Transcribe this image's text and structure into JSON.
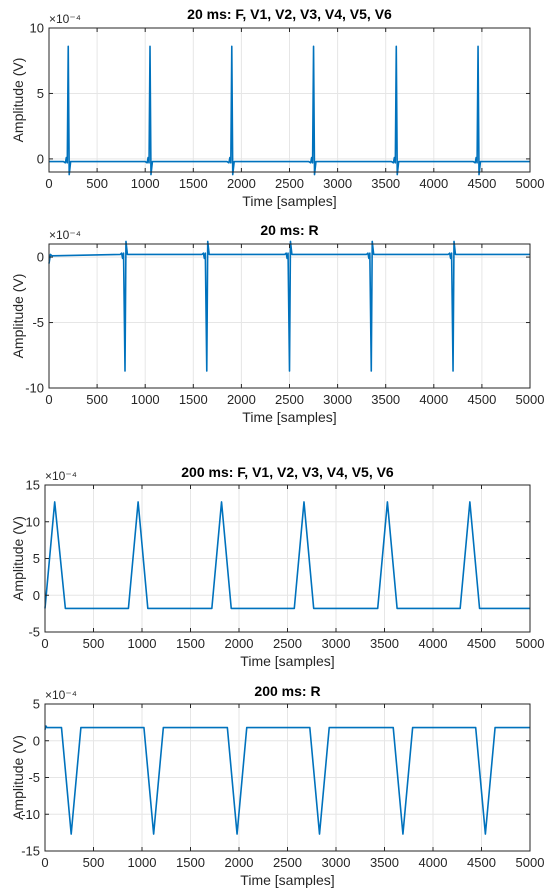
{
  "figure": {
    "series_color": "#0072BD"
  },
  "chart_data": [
    {
      "type": "line",
      "title": "20 ms: F, V1, V2, V3, V4, V5, V6",
      "xlabel": "Time [samples]",
      "ylabel": "Amplitude (V)",
      "exponent": "×10⁻⁴",
      "xlim": [
        0,
        5000
      ],
      "ylim": [
        -1,
        10
      ],
      "xticks": [
        "0",
        "500",
        "1000",
        "1500",
        "2000",
        "2500",
        "3000",
        "3500",
        "4000",
        "4500",
        "5000"
      ],
      "yticks": [
        "0",
        "5",
        "10"
      ],
      "ytick_values": [
        0,
        5,
        10
      ],
      "grid": true,
      "series": [
        {
          "values": [
            [
              0,
              -0.2
            ],
            [
              150,
              -0.2
            ],
            [
              170,
              -0.3
            ],
            [
              180,
              0.1
            ],
            [
              190,
              -0.3
            ],
            [
              200,
              8.6
            ],
            [
              210,
              -1.2
            ],
            [
              225,
              -0.2
            ],
            [
              1000,
              -0.2
            ],
            [
              1020,
              -0.3
            ],
            [
              1030,
              0.1
            ],
            [
              1040,
              -0.3
            ],
            [
              1050,
              8.6
            ],
            [
              1060,
              -1.2
            ],
            [
              1075,
              -0.2
            ],
            [
              1850,
              -0.2
            ],
            [
              1870,
              -0.3
            ],
            [
              1880,
              0.1
            ],
            [
              1890,
              -0.3
            ],
            [
              1900,
              8.6
            ],
            [
              1910,
              -1.2
            ],
            [
              1925,
              -0.2
            ],
            [
              2700,
              -0.2
            ],
            [
              2720,
              -0.3
            ],
            [
              2730,
              0.1
            ],
            [
              2740,
              -0.3
            ],
            [
              2750,
              8.6
            ],
            [
              2760,
              -1.2
            ],
            [
              2775,
              -0.2
            ],
            [
              3560,
              -0.2
            ],
            [
              3580,
              -0.3
            ],
            [
              3590,
              0.1
            ],
            [
              3600,
              -0.3
            ],
            [
              3610,
              8.6
            ],
            [
              3620,
              -1.2
            ],
            [
              3635,
              -0.2
            ],
            [
              4410,
              -0.2
            ],
            [
              4430,
              -0.3
            ],
            [
              4440,
              0.1
            ],
            [
              4450,
              -0.3
            ],
            [
              4460,
              8.6
            ],
            [
              4470,
              -1.2
            ],
            [
              4485,
              -0.2
            ],
            [
              5000,
              -0.2
            ]
          ]
        }
      ]
    },
    {
      "type": "line",
      "title": "20 ms: R",
      "xlabel": "Time [samples]",
      "ylabel": "Amplitude (V)",
      "exponent": "×10⁻⁴",
      "xlim": [
        0,
        5000
      ],
      "ylim": [
        -10,
        1
      ],
      "xticks": [
        "0",
        "500",
        "1000",
        "1500",
        "2000",
        "2500",
        "3000",
        "3500",
        "4000",
        "4500",
        "5000"
      ],
      "yticks": [
        "-10",
        "-5",
        "0"
      ],
      "ytick_values": [
        -10,
        -5,
        0
      ],
      "grid": true,
      "series": [
        {
          "values": [
            [
              0,
              -0.5
            ],
            [
              15,
              0.2
            ],
            [
              30,
              0.1
            ],
            [
              740,
              0.2
            ],
            [
              755,
              0.3
            ],
            [
              765,
              -0.1
            ],
            [
              775,
              0.3
            ],
            [
              790,
              -8.7
            ],
            [
              800,
              1.2
            ],
            [
              815,
              0.2
            ],
            [
              1590,
              0.2
            ],
            [
              1605,
              0.3
            ],
            [
              1615,
              -0.1
            ],
            [
              1625,
              0.3
            ],
            [
              1640,
              -8.7
            ],
            [
              1650,
              1.2
            ],
            [
              1665,
              0.2
            ],
            [
              2450,
              0.2
            ],
            [
              2465,
              0.3
            ],
            [
              2475,
              -0.1
            ],
            [
              2485,
              0.3
            ],
            [
              2500,
              -8.7
            ],
            [
              2510,
              1.2
            ],
            [
              2525,
              0.2
            ],
            [
              3300,
              0.2
            ],
            [
              3315,
              0.3
            ],
            [
              3325,
              -0.1
            ],
            [
              3335,
              0.3
            ],
            [
              3350,
              -8.7
            ],
            [
              3360,
              1.2
            ],
            [
              3375,
              0.2
            ],
            [
              4150,
              0.2
            ],
            [
              4165,
              0.3
            ],
            [
              4175,
              -0.1
            ],
            [
              4185,
              0.3
            ],
            [
              4200,
              -8.7
            ],
            [
              4210,
              1.2
            ],
            [
              4225,
              0.2
            ],
            [
              5000,
              0.2
            ]
          ]
        }
      ]
    },
    {
      "type": "line",
      "title": "200 ms: F, V1, V2, V3, V4, V5, V6",
      "xlabel": "Time [samples]",
      "ylabel": "Amplitude (V)",
      "exponent": "×10⁻⁴",
      "xlim": [
        0,
        5000
      ],
      "ylim": [
        -5,
        15
      ],
      "xticks": [
        "0",
        "500",
        "1000",
        "1500",
        "2000",
        "2500",
        "3000",
        "3500",
        "4000",
        "4500",
        "5000"
      ],
      "yticks": [
        "-5",
        "0",
        "5",
        "10",
        "15"
      ],
      "ytick_values": [
        -5,
        0,
        5,
        10,
        15
      ],
      "grid": true,
      "series": [
        {
          "values": [
            [
              0,
              -1.8
            ],
            [
              100,
              12.7
            ],
            [
              210,
              -1.8
            ],
            [
              860,
              -1.8
            ],
            [
              960,
              12.7
            ],
            [
              1060,
              -1.8
            ],
            [
              1720,
              -1.8
            ],
            [
              1820,
              12.7
            ],
            [
              1920,
              -1.8
            ],
            [
              2570,
              -1.8
            ],
            [
              2670,
              12.7
            ],
            [
              2770,
              -1.8
            ],
            [
              3430,
              -1.8
            ],
            [
              3530,
              12.7
            ],
            [
              3630,
              -1.8
            ],
            [
              4280,
              -1.8
            ],
            [
              4380,
              12.7
            ],
            [
              4480,
              -1.8
            ],
            [
              5000,
              -1.8
            ]
          ]
        }
      ]
    },
    {
      "type": "line",
      "title": "200 ms: R",
      "xlabel": "Time [samples]",
      "ylabel": "Amplitude (V)",
      "exponent": "×10⁻⁴",
      "xlim": [
        0,
        5000
      ],
      "ylim": [
        -15,
        5
      ],
      "xticks": [
        "0",
        "500",
        "1000",
        "1500",
        "2000",
        "2500",
        "3000",
        "3500",
        "4000",
        "4500",
        "5000"
      ],
      "yticks": [
        "-15",
        "-10",
        "-5",
        "0",
        "5"
      ],
      "ytick_values": [
        -15,
        -10,
        -5,
        0,
        5
      ],
      "grid": true,
      "series": [
        {
          "values": [
            [
              0,
              1.5
            ],
            [
              10,
              2.0
            ],
            [
              20,
              1.8
            ],
            [
              170,
              1.8
            ],
            [
              270,
              -12.7
            ],
            [
              370,
              1.8
            ],
            [
              1020,
              1.8
            ],
            [
              1120,
              -12.7
            ],
            [
              1220,
              1.8
            ],
            [
              1880,
              1.8
            ],
            [
              1980,
              -12.7
            ],
            [
              2080,
              1.8
            ],
            [
              2730,
              1.8
            ],
            [
              2830,
              -12.7
            ],
            [
              2930,
              1.8
            ],
            [
              3590,
              1.8
            ],
            [
              3690,
              -12.7
            ],
            [
              3790,
              1.8
            ],
            [
              4440,
              1.8
            ],
            [
              4540,
              -12.7
            ],
            [
              4640,
              1.8
            ],
            [
              5000,
              1.8
            ]
          ]
        }
      ]
    }
  ]
}
